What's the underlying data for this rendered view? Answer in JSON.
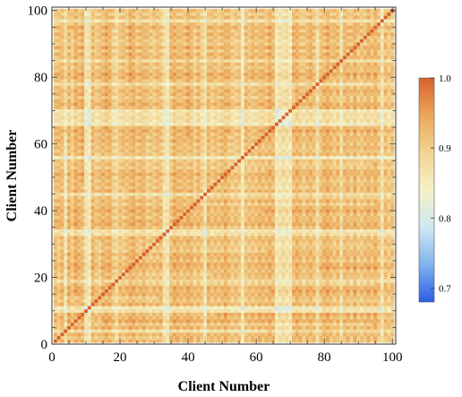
{
  "chart_data": {
    "type": "heatmap",
    "title": "",
    "xlabel": "Client Number",
    "ylabel": "Client Number",
    "xlim": [
      0,
      101
    ],
    "ylim": [
      0,
      101
    ],
    "x_ticks": [
      0,
      20,
      40,
      60,
      80,
      100
    ],
    "y_ticks": [
      0,
      20,
      40,
      60,
      80,
      100
    ],
    "grid_size": 100,
    "diagonal_value": 1.0,
    "typical_offdiagonal_range": [
      0.85,
      0.97
    ],
    "low_similarity_clients": [
      4,
      10,
      11,
      19,
      33,
      34,
      45,
      56,
      66,
      67,
      68,
      69,
      70,
      78,
      85,
      97
    ],
    "min_value_observed": 0.68,
    "colorbar": {
      "min": 0.68,
      "max": 1.0,
      "ticks": [
        0.7,
        0.8,
        0.9,
        1.0
      ],
      "tick_labels": [
        "0.7",
        "0.8",
        "0.9",
        "1.0"
      ],
      "colormap": [
        "#2b5ce6",
        "#7fb3ee",
        "#cfe8f0",
        "#f4f1c8",
        "#f2d592",
        "#eba658",
        "#d8612e"
      ]
    },
    "legend": "colorbar-right",
    "grid": false
  }
}
